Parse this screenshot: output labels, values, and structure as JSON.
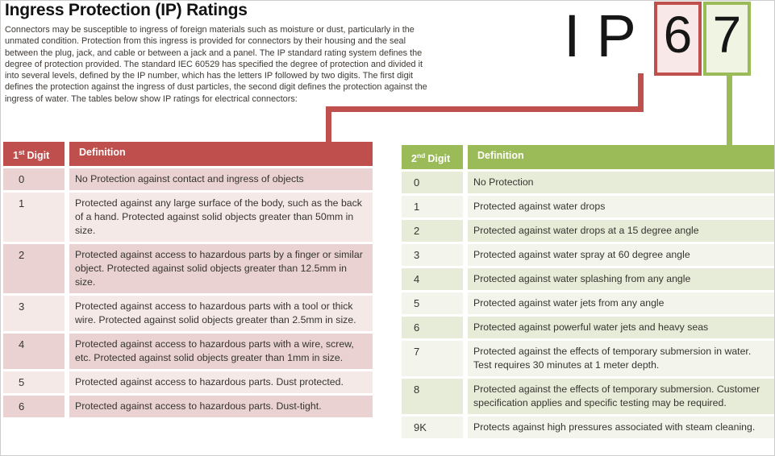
{
  "page": {
    "title": "Ingress Protection (IP) Ratings",
    "intro": "Connectors may be susceptible to ingress of foreign materials such as moisture or dust, particularly in the unmated condition. Protection from this ingress is provided for connectors by their housing and the seal between the plug, jack, and cable or between a jack and a panel. The IP standard rating system defines the degree of protection provided. The standard IEC 60529 has specified the degree of protection and divided it into several levels, defined by the IP number, which has the letters IP followed by two digits. The first digit defines the protection against the ingress of dust particles, the second digit defines the protection against the ingress of water. The tables below show IP ratings for electrical connectors:"
  },
  "ip_example": {
    "prefix": "IP",
    "first_digit": "6",
    "second_digit": "7"
  },
  "colors": {
    "red_accent": "#c0504d",
    "green_accent": "#9bbb59",
    "red_header_bg": "#bf4f4c",
    "red_row_shaded": "#e9d2d1",
    "red_row_light": "#f5e9e8",
    "green_header_bg": "#9bba58",
    "green_row_shaded": "#e7ecd8",
    "green_row_light": "#f3f5ec",
    "red_box_fill": "#f9e8e8",
    "green_box_fill": "#eff4e3"
  },
  "first_digit_table": {
    "header": {
      "number": "1",
      "ordinal": "st",
      "word": "Digit",
      "definition": "Definition"
    },
    "rows": [
      {
        "digit": "0",
        "definition": "No Protection against contact and ingress of objects"
      },
      {
        "digit": "1",
        "definition": "Protected against any large surface of the body, such as the back of a hand. Protected against solid objects greater than 50mm in size."
      },
      {
        "digit": "2",
        "definition": "Protected against access to hazardous parts by a finger or similar object. Protected against solid objects greater than 12.5mm in size."
      },
      {
        "digit": "3",
        "definition": "Protected against access to hazardous parts with a tool or thick wire. Protected against solid objects greater than 2.5mm in size."
      },
      {
        "digit": "4",
        "definition": "Protected against access to hazardous parts with a wire, screw, etc. Protected against solid objects greater than 1mm in size."
      },
      {
        "digit": "5",
        "definition": "Protected against access to hazardous parts. Dust protected."
      },
      {
        "digit": "6",
        "definition": "Protected against access to hazardous parts. Dust-tight."
      }
    ]
  },
  "second_digit_table": {
    "header": {
      "number": "2",
      "ordinal": "nd",
      "word": "Digit",
      "definition": "Definition"
    },
    "rows": [
      {
        "digit": "0",
        "definition": "No Protection"
      },
      {
        "digit": "1",
        "definition": "Protected against water drops"
      },
      {
        "digit": "2",
        "definition": "Protected against water drops at a 15 degree angle"
      },
      {
        "digit": "3",
        "definition": "Protected against water spray at 60 degree angle"
      },
      {
        "digit": "4",
        "definition": "Protected against water splashing from any angle"
      },
      {
        "digit": "5",
        "definition": "Protected against water jets from any angle"
      },
      {
        "digit": "6",
        "definition": "Protected against powerful water jets and heavy seas"
      },
      {
        "digit": "7",
        "definition": "Protected against the effects of temporary submersion in water. Test requires 30 minutes at 1 meter depth."
      },
      {
        "digit": "8",
        "definition": "Protected against the effects of temporary submersion. Customer specification applies and specific testing may be required."
      },
      {
        "digit": "9K",
        "definition": "Protects against high pressures associated with steam cleaning."
      }
    ]
  }
}
